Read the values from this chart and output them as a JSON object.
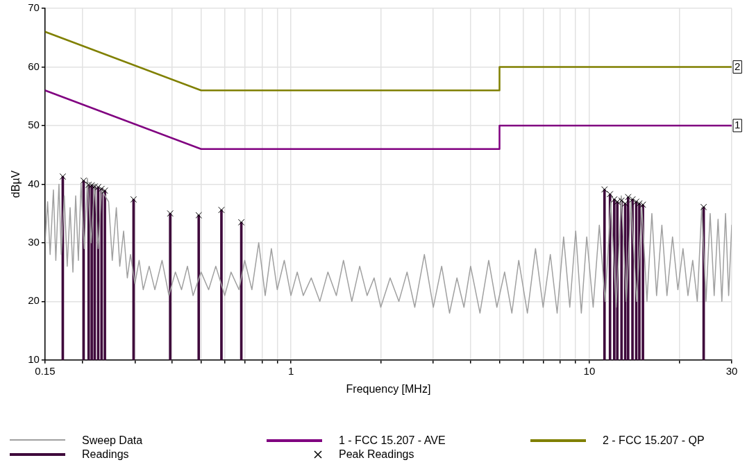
{
  "chart_data": {
    "type": "line",
    "xlabel": "Frequency [MHz]",
    "ylabel": "dBµV",
    "log": "x",
    "grid": true,
    "legend": "bottom",
    "xlim": [
      0.15,
      30
    ],
    "ylim": [
      10,
      70
    ],
    "xticks": [
      0.15,
      {
        "value": 0.2,
        "label": null
      },
      {
        "value": 0.3,
        "label": null
      },
      {
        "value": 0.4,
        "label": null
      },
      {
        "value": 0.5,
        "label": null
      },
      {
        "value": 0.6,
        "label": null
      },
      {
        "value": 0.7,
        "label": null
      },
      {
        "value": 0.8,
        "label": null
      },
      {
        "value": 0.9,
        "label": null
      },
      1,
      {
        "value": 2,
        "label": null
      },
      {
        "value": 3,
        "label": null
      },
      {
        "value": 4,
        "label": null
      },
      {
        "value": 5,
        "label": null
      },
      {
        "value": 6,
        "label": null
      },
      {
        "value": 7,
        "label": null
      },
      {
        "value": 8,
        "label": null
      },
      {
        "value": 9,
        "label": null
      },
      10,
      {
        "value": 20,
        "label": null
      },
      30
    ],
    "yticks": [
      10,
      20,
      30,
      40,
      50,
      60,
      70
    ],
    "series": [
      {
        "name": "Sweep Data",
        "color": "#a0a0a0",
        "x": [
          0.15,
          0.153,
          0.156,
          0.16,
          0.163,
          0.167,
          0.17,
          0.174,
          0.178,
          0.182,
          0.186,
          0.19,
          0.194,
          0.198,
          0.203,
          0.208,
          0.214,
          0.22,
          0.226,
          0.232,
          0.238,
          0.245,
          0.252,
          0.26,
          0.267,
          0.275,
          0.283,
          0.29,
          0.3,
          0.31,
          0.32,
          0.335,
          0.35,
          0.37,
          0.39,
          0.41,
          0.43,
          0.45,
          0.47,
          0.5,
          0.53,
          0.56,
          0.6,
          0.63,
          0.67,
          0.7,
          0.74,
          0.78,
          0.82,
          0.86,
          0.9,
          0.95,
          1.0,
          1.05,
          1.1,
          1.17,
          1.25,
          1.33,
          1.42,
          1.5,
          1.6,
          1.7,
          1.8,
          1.9,
          2.0,
          2.15,
          2.3,
          2.45,
          2.6,
          2.8,
          3.0,
          3.2,
          3.4,
          3.6,
          3.8,
          4.0,
          4.3,
          4.6,
          4.9,
          5.2,
          5.5,
          5.8,
          6.2,
          6.6,
          7.0,
          7.4,
          7.8,
          8.2,
          8.6,
          9.0,
          9.4,
          9.8,
          10.3,
          10.8,
          11.3,
          11.8,
          12.3,
          12.8,
          13.3,
          13.8,
          14.4,
          15.0,
          15.6,
          16.2,
          16.8,
          17.5,
          18.2,
          19.0,
          19.8,
          20.6,
          21.4,
          22.2,
          23.0,
          23.8,
          24.6,
          25.4,
          26.2,
          27.0,
          27.8,
          28.6,
          29.3,
          30
        ],
        "values": [
          30,
          37,
          28,
          39,
          27,
          40,
          28,
          38,
          26,
          36,
          25,
          38,
          27,
          40,
          29,
          41,
          30,
          40,
          29,
          39,
          null,
          37,
          27,
          36,
          26,
          32,
          24,
          28,
          23,
          27,
          22,
          26,
          22,
          27,
          21,
          25,
          22,
          26,
          21,
          25,
          22,
          26,
          21,
          25,
          22,
          27,
          22,
          30,
          21,
          29,
          22,
          27,
          21,
          25,
          21,
          24,
          20,
          25,
          21,
          27,
          20,
          26,
          21,
          24,
          19,
          24,
          20,
          25,
          19,
          28,
          19,
          26,
          18,
          24,
          19,
          26,
          18,
          27,
          19,
          25,
          18,
          27,
          18,
          29,
          19,
          28,
          18,
          31,
          19,
          32,
          18,
          31,
          19,
          33,
          20,
          37,
          19,
          38,
          20,
          37,
          20,
          36,
          20,
          35,
          21,
          33,
          21,
          31,
          22,
          29,
          21,
          27,
          20,
          36,
          20,
          35,
          21,
          34,
          20,
          35,
          21,
          33
        ]
      },
      {
        "name": "Readings",
        "type": "bar",
        "color": "#3f0a3c",
        "x": [
          0.172,
          0.202,
          0.21,
          0.215,
          0.22,
          0.226,
          0.232,
          0.238,
          0.297,
          0.394,
          0.491,
          0.585,
          0.682,
          11.24,
          11.73,
          12.12,
          12.41,
          12.82,
          13.19,
          13.49,
          13.95,
          14.36,
          14.71,
          15.12,
          24.16
        ],
        "values": [
          41.3,
          40.6,
          39.9,
          39.8,
          39.6,
          39.5,
          39.2,
          38.9,
          37.4,
          35.0,
          34.7,
          35.6,
          33.5,
          39.1,
          38.3,
          37.4,
          37.0,
          37.2,
          36.7,
          37.8,
          37.4,
          37.0,
          36.7,
          36.5,
          36.1
        ]
      },
      {
        "name": "1 - FCC 15.207 - AVE",
        "color": "#800080",
        "x": [
          0.15,
          0.5,
          5,
          5,
          30
        ],
        "values": [
          56,
          46,
          46,
          50,
          50
        ]
      },
      {
        "name": "Peak Readings",
        "type": "scatter",
        "marker": "cross",
        "color": "#000000",
        "x": [
          0.172,
          0.202,
          0.21,
          0.215,
          0.22,
          0.226,
          0.232,
          0.238,
          0.297,
          0.394,
          0.491,
          0.585,
          0.682,
          11.24,
          11.73,
          12.12,
          12.41,
          12.82,
          13.19,
          13.49,
          13.95,
          14.36,
          14.71,
          15.12,
          24.16
        ],
        "values": [
          41.3,
          40.6,
          39.9,
          39.8,
          39.6,
          39.5,
          39.2,
          38.9,
          37.4,
          35.0,
          34.7,
          35.6,
          33.5,
          39.1,
          38.3,
          37.4,
          37.0,
          37.2,
          36.7,
          37.8,
          37.4,
          37.0,
          36.7,
          36.5,
          36.1
        ]
      },
      {
        "name": "2 - FCC 15.207 - QP",
        "color": "#808000",
        "x": [
          0.15,
          0.5,
          5,
          5,
          30
        ],
        "values": [
          66,
          56,
          56,
          60,
          60
        ]
      }
    ],
    "annotations": [
      {
        "text": "1",
        "x": 30,
        "y": 50
      },
      {
        "text": "2",
        "x": 30,
        "y": 60
      }
    ]
  }
}
